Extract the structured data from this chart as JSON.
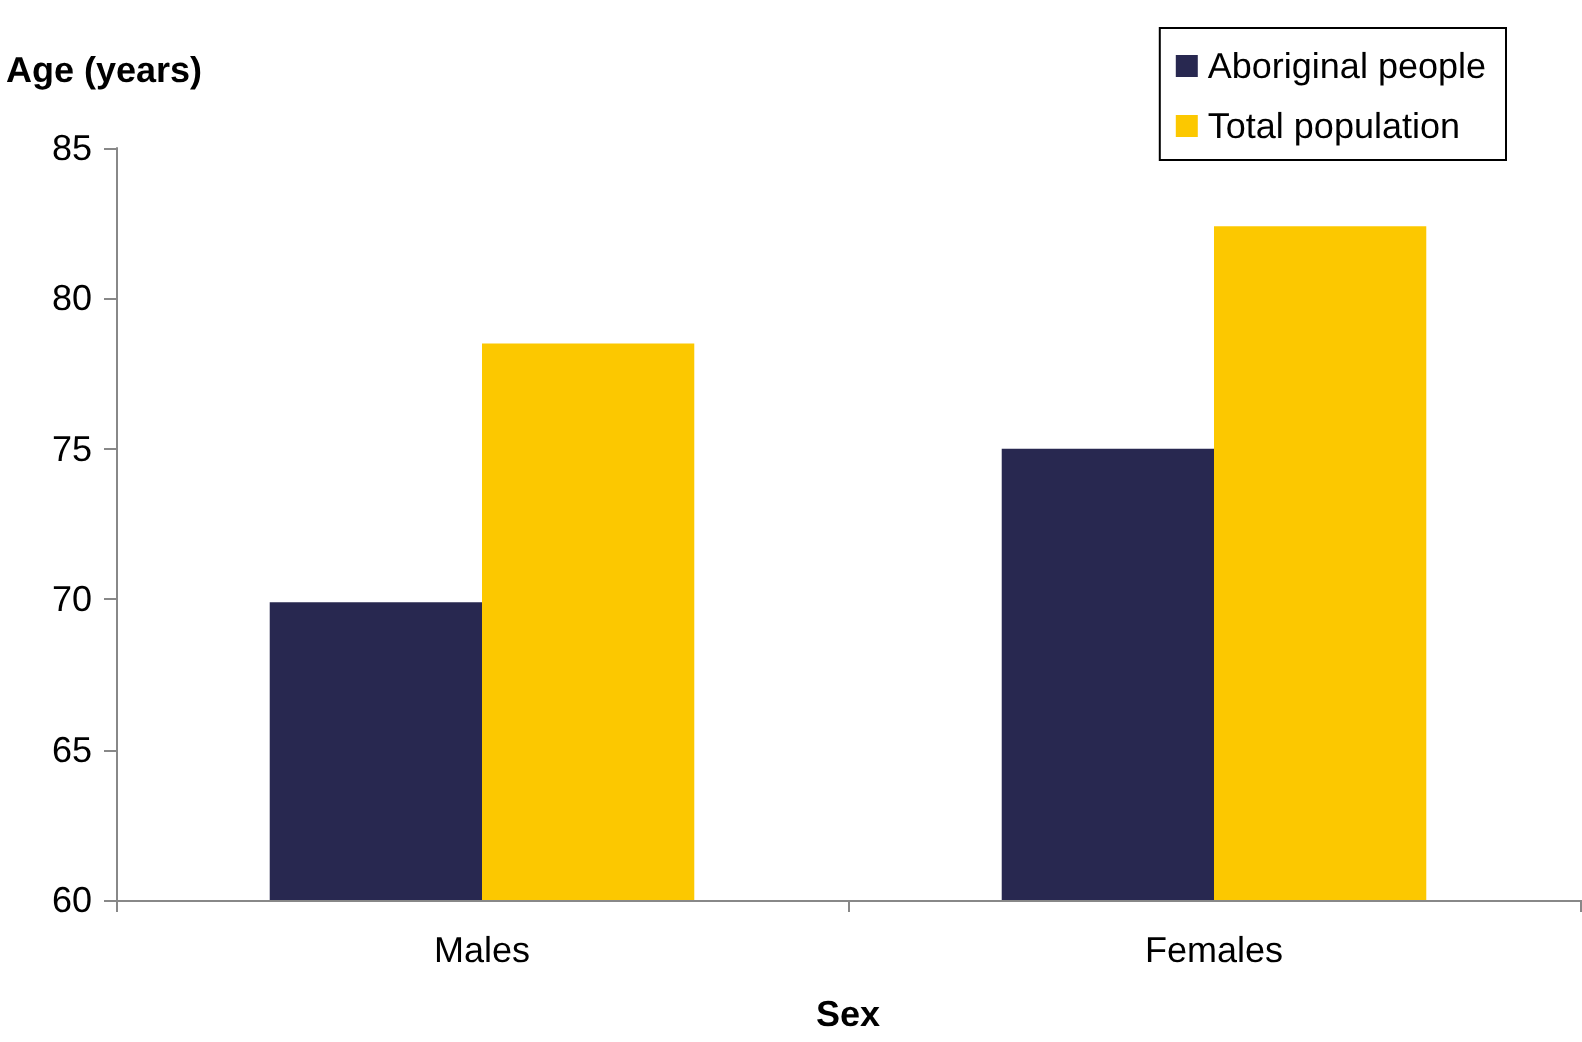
{
  "chart_data": {
    "type": "bar",
    "xlabel": "Sex",
    "ylabel": "Age (years)",
    "categories": [
      "Males",
      "Females"
    ],
    "series": [
      {
        "name": "Aboriginal people",
        "color": "#282850",
        "values": [
          69.9,
          75.0
        ]
      },
      {
        "name": "Total population",
        "color": "#fcc800",
        "values": [
          78.5,
          82.4
        ]
      }
    ],
    "ylim": [
      60,
      85
    ],
    "yticks": [
      60,
      65,
      70,
      75,
      80,
      85
    ],
    "grid": false,
    "legend": "top right"
  }
}
